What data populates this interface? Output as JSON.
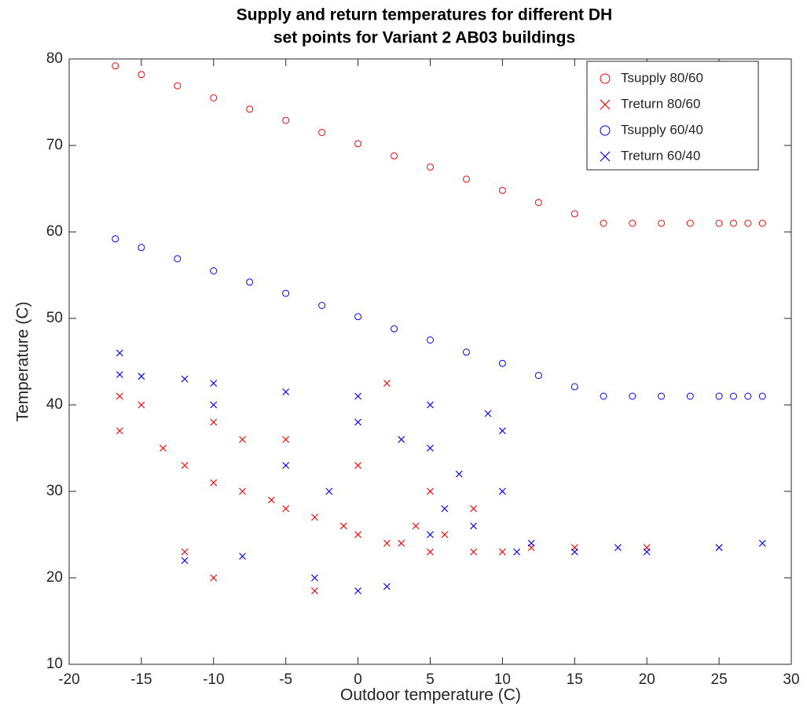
{
  "chart_data": {
    "type": "scatter",
    "title": [
      "Supply and return temperatures for different DH",
      "set points for Variant 2 AB03 buildings"
    ],
    "x_label": "Outdoor temperature (C)",
    "y_label": "Temperature (C)",
    "xlim": [
      -20,
      30
    ],
    "xticks": [
      -20,
      -15,
      -10,
      -5,
      0,
      5,
      10,
      15,
      20,
      25,
      30
    ],
    "ylim": [
      10,
      80
    ],
    "yticks": [
      10,
      20,
      30,
      40,
      50,
      60,
      70,
      80
    ],
    "grid": false,
    "legend": "upper right",
    "series": [
      {
        "name": "Tsupply 80/60",
        "color": "#ff0000",
        "marker": "circle",
        "x": [
          -16.8,
          -15,
          -12.5,
          -10,
          -7.5,
          -5,
          -2.5,
          0,
          2.5,
          5,
          7.5,
          10,
          12.5,
          15,
          17,
          19,
          21,
          23,
          25,
          26,
          27,
          28
        ],
        "values": [
          79.2,
          78.2,
          76.9,
          75.5,
          74.2,
          72.9,
          71.5,
          70.2,
          68.8,
          67.5,
          66.1,
          64.8,
          63.4,
          62.1,
          61,
          61,
          61,
          61,
          61,
          61,
          61,
          61
        ]
      },
      {
        "name": "Treturn 80/60",
        "color": "#ff0000",
        "marker": "x",
        "x": [
          -16.5,
          -15,
          -13.5,
          -12,
          -10,
          -8,
          -6,
          -5,
          -3,
          -1,
          0,
          2,
          3,
          5,
          8,
          10,
          12,
          15,
          20,
          25,
          -10,
          -8,
          -5,
          -3,
          2,
          -12,
          -10,
          0,
          5,
          8,
          -16.5,
          4,
          6
        ],
        "values": [
          37,
          40,
          35,
          33,
          31,
          30,
          29,
          28,
          27,
          26,
          25,
          24,
          24,
          23,
          23,
          23,
          23.5,
          23.5,
          23.5,
          23.5,
          38,
          36,
          36,
          18.5,
          42.5,
          23,
          20,
          33,
          30,
          28,
          41,
          26,
          25
        ]
      },
      {
        "name": "Tsupply 60/40",
        "color": "#0000ff",
        "marker": "circle",
        "x": [
          -16.8,
          -15,
          -12.5,
          -10,
          -7.5,
          -5,
          -2.5,
          0,
          2.5,
          5,
          7.5,
          10,
          12.5,
          15,
          17,
          19,
          21,
          23,
          25,
          26,
          27,
          28
        ],
        "values": [
          59.2,
          58.2,
          56.9,
          55.5,
          54.2,
          52.9,
          51.5,
          50.2,
          48.8,
          47.5,
          46.1,
          44.8,
          43.4,
          42.1,
          41,
          41,
          41,
          41,
          41,
          41,
          41,
          41
        ]
      },
      {
        "name": "Treturn 60/40",
        "color": "#0000ff",
        "marker": "x",
        "x": [
          -16.5,
          -15,
          -12,
          -10,
          -5,
          0,
          5,
          9,
          10,
          10,
          5,
          0,
          -5,
          -10,
          -3,
          0,
          2,
          11,
          15,
          20,
          25,
          28,
          5,
          8,
          -8,
          -12,
          3,
          7,
          -2,
          6,
          -16.5,
          12,
          18
        ],
        "values": [
          46,
          43.3,
          43,
          42.5,
          41.5,
          41,
          40,
          39,
          37,
          30,
          35,
          38,
          33,
          40,
          20,
          18.5,
          19,
          23,
          23,
          23,
          23.5,
          24,
          25,
          26,
          22.5,
          22,
          36,
          32,
          30,
          28,
          43.5,
          24,
          23.5
        ]
      }
    ]
  }
}
